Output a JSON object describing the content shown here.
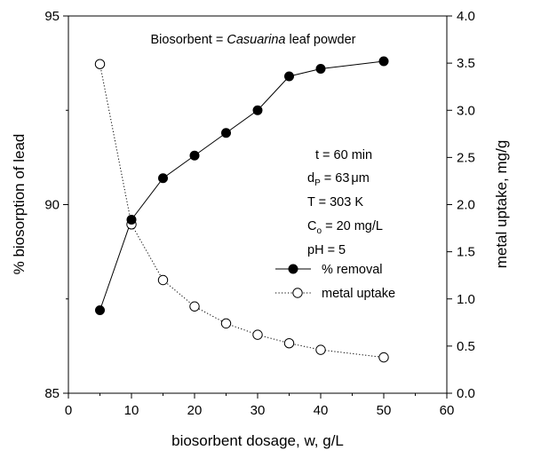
{
  "chart_data": {
    "type": "scatter",
    "annotation_title_prefix": "Biosorbent = ",
    "annotation_title_italic": "Casuarina",
    "annotation_title_suffix": " leaf powder",
    "xlabel": "biosorbent dosage, w, g/L",
    "ylabel_left": "% biosorption of lead",
    "ylabel_right": "metal uptake, mg/g",
    "xlim": [
      0,
      60
    ],
    "ylim_left": [
      85,
      95
    ],
    "ylim_right": [
      0.0,
      4.0
    ],
    "x_ticks": [
      "0",
      "10",
      "20",
      "30",
      "40",
      "50",
      "60"
    ],
    "y_left_ticks": [
      "85",
      "90",
      "95"
    ],
    "y_right_ticks": [
      "0.0",
      "0.5",
      "1.0",
      "1.5",
      "2.0",
      "2.5",
      "3.0",
      "3.5",
      "4.0"
    ],
    "conditions": {
      "time": "t = 60 min",
      "dp_prefix": "d",
      "dp_sub": "P",
      "dp_suffix": " = 63",
      "dp_unit": "μm",
      "temperature": "T = 303 K",
      "co_prefix": "C",
      "co_sub": "o",
      "co_suffix": " = 20 mg/L",
      "ph": "pH = 5"
    },
    "grid": false,
    "legend_placement": "center-right",
    "series": [
      {
        "name": "% removal",
        "axis": "left",
        "marker": "filled-circle",
        "line": "solid",
        "color": "#000000",
        "x": [
          5,
          10,
          15,
          20,
          25,
          30,
          35,
          40,
          50
        ],
        "y": [
          87.2,
          89.6,
          90.7,
          91.3,
          91.9,
          92.5,
          93.4,
          93.6,
          93.8
        ]
      },
      {
        "name": "metal uptake",
        "axis": "right",
        "marker": "open-circle",
        "line": "dotted",
        "color": "#000000",
        "x": [
          5,
          10,
          15,
          20,
          25,
          30,
          35,
          40,
          50
        ],
        "y": [
          3.49,
          1.79,
          1.2,
          0.92,
          0.74,
          0.62,
          0.53,
          0.46,
          0.38
        ]
      }
    ]
  }
}
